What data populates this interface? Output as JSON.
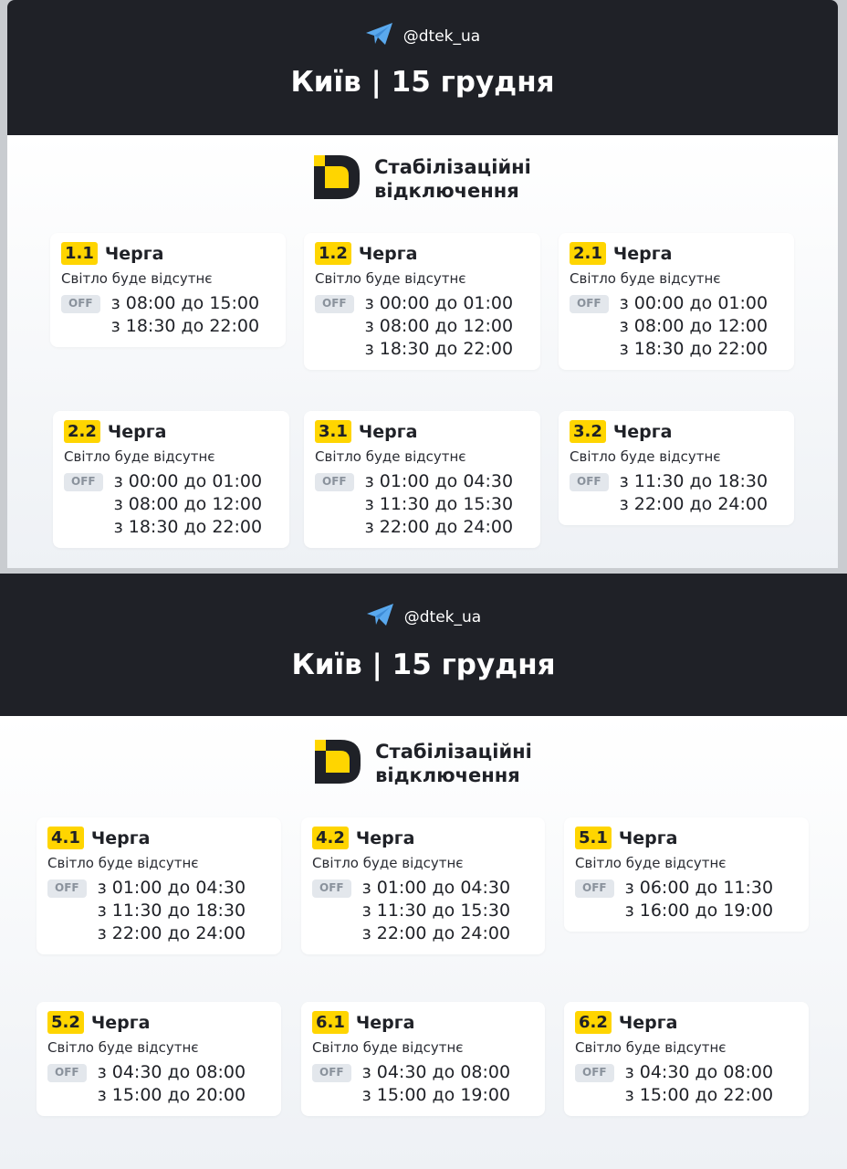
{
  "panels": [
    {
      "telegram": "@dtek_ua",
      "title": "Київ | 15 грудня",
      "brand": [
        "Стабілізаційні",
        "відключення"
      ],
      "cards": [
        {
          "queue": "1.1",
          "label": "Черга",
          "subtitle": "Світло буде відсутнє",
          "badge": "OFF",
          "times": [
            "з 08:00 до 15:00",
            "з 18:30 до 22:00"
          ]
        },
        {
          "queue": "1.2",
          "label": "Черга",
          "subtitle": "Світло буде відсутнє",
          "badge": "OFF",
          "times": [
            "з 00:00 до 01:00",
            "з 08:00 до 12:00",
            "з 18:30 до 22:00"
          ]
        },
        {
          "queue": "2.1",
          "label": "Черга",
          "subtitle": "Світло буде відсутнє",
          "badge": "OFF",
          "times": [
            "з 00:00 до 01:00",
            "з 08:00 до 12:00",
            "з 18:30 до 22:00"
          ]
        },
        {
          "queue": "2.2",
          "label": "Черга",
          "subtitle": "Світло буде відсутнє",
          "badge": "OFF",
          "times": [
            "з 00:00 до 01:00",
            "з 08:00 до 12:00",
            "з 18:30 до 22:00"
          ]
        },
        {
          "queue": "3.1",
          "label": "Черга",
          "subtitle": "Світло буде відсутнє",
          "badge": "OFF",
          "times": [
            "з 01:00 до 04:30",
            "з 11:30 до 15:30",
            "з 22:00 до 24:00"
          ]
        },
        {
          "queue": "3.2",
          "label": "Черга",
          "subtitle": "Світло буде відсутнє",
          "badge": "OFF",
          "times": [
            "з 11:30 до 18:30",
            "з 22:00 до 24:00"
          ]
        }
      ]
    },
    {
      "telegram": "@dtek_ua",
      "title": "Київ | 15 грудня",
      "brand": [
        "Стабілізаційні",
        "відключення"
      ],
      "cards": [
        {
          "queue": "4.1",
          "label": "Черга",
          "subtitle": "Світло буде відсутнє",
          "badge": "OFF",
          "times": [
            "з 01:00 до 04:30",
            "з 11:30 до 18:30",
            "з 22:00 до 24:00"
          ]
        },
        {
          "queue": "4.2",
          "label": "Черга",
          "subtitle": "Світло буде відсутнє",
          "badge": "OFF",
          "times": [
            "з 01:00 до 04:30",
            "з 11:30 до 15:30",
            "з 22:00 до 24:00"
          ]
        },
        {
          "queue": "5.1",
          "label": "Черга",
          "subtitle": "Світло буде відсутнє",
          "badge": "OFF",
          "times": [
            "з 06:00 до 11:30",
            "з 16:00 до 19:00"
          ]
        },
        {
          "queue": "5.2",
          "label": "Черга",
          "subtitle": "Світло буде відсутнє",
          "badge": "OFF",
          "times": [
            "з 04:30 до 08:00",
            "з 15:00 до 20:00"
          ]
        },
        {
          "queue": "6.1",
          "label": "Черга",
          "subtitle": "Світло буде відсутнє",
          "badge": "OFF",
          "times": [
            "з 04:30 до 08:00",
            "з 15:00 до 19:00"
          ]
        },
        {
          "queue": "6.2",
          "label": "Черга",
          "subtitle": "Світло буде відсутнє",
          "badge": "OFF",
          "times": [
            "з 04:30 до 08:00",
            "з 15:00 до 22:00"
          ]
        }
      ]
    }
  ],
  "colors": {
    "header": "#1f2127",
    "accent": "#ffd500",
    "telegram": "#5aa9ee",
    "badge_bg": "#e3e7ec"
  }
}
